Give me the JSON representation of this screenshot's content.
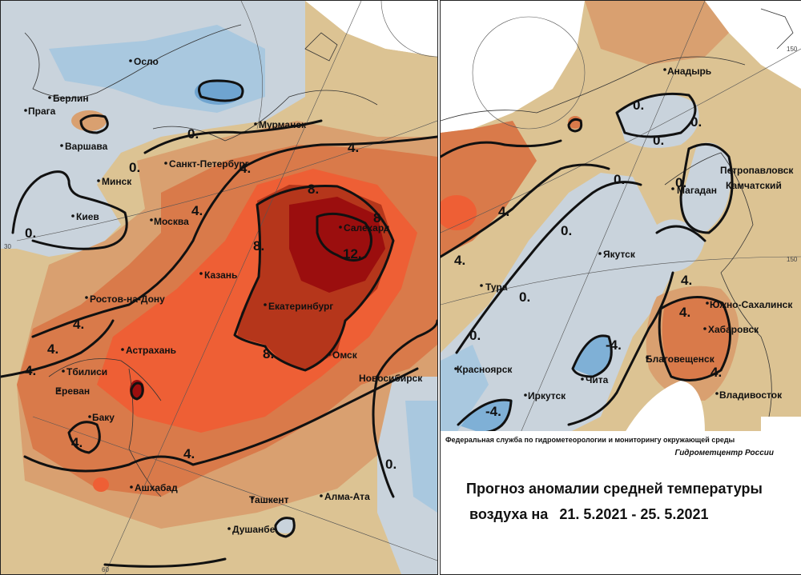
{
  "left_map": {
    "cities": [
      "Осло",
      "Берлин",
      "Прага",
      "Варшава",
      "Минск",
      "Киев",
      "Москва",
      "Санкт-Петербург",
      "Мурманск",
      "Казань",
      "Ростов-на-Дону",
      "Астрахань",
      "Тбилиси",
      "Ереван",
      "Баку",
      "Ашхабад",
      "Екатеринбург",
      "Салехард",
      "Омск",
      "Новосибирск",
      "Ташкент",
      "Алма-Ата",
      "Душанбе"
    ],
    "contour_labels": [
      "0.",
      "0.",
      "0.",
      "4.",
      "4.",
      "4.",
      "4.",
      "4.",
      "4.",
      "8.",
      "8.",
      "8.",
      "8.",
      "12.",
      "4.",
      "4.",
      "0."
    ],
    "grid_labels": [
      "30",
      "60"
    ]
  },
  "right_map": {
    "cities": [
      "Анадырь",
      "Петропавловск",
      "Камчатский",
      "Магадан",
      "Якутск",
      "Тура",
      "Красноярск",
      "Иркутск",
      "Чита",
      "Благовещенск",
      "Южно-Сахалинск",
      "Хабаровск",
      "Владивосток"
    ],
    "contour_labels": [
      "0.",
      "0.",
      "0.",
      "0.",
      "0.",
      "0.",
      "0.",
      "0.",
      "4.",
      "4.",
      "4.",
      "4.",
      "-4.",
      "-4.",
      "4."
    ],
    "grid_labels": [
      "150",
      "150"
    ]
  },
  "info": {
    "agency": "Федеральная служба по гидрометеорологии и мониторингу окружающей среды",
    "center": "Гидрометцентр России",
    "title_line1": "Прогноз аномалии средней температуры",
    "title_line2": "воздуха на",
    "dates": "21. 5.2021 - 25. 5.2021"
  },
  "legend_colors": {
    "minus4": "#7fb0d6",
    "minus2": "#a9c8df",
    "zero_minus": "#c9d3dc",
    "zero_plus": "#dcc393",
    "plus2": "#d9a070",
    "plus4": "#d97a4a",
    "plus6": "#ee5f35",
    "plus8": "#b5361b",
    "plus12": "#9b0e0e"
  }
}
